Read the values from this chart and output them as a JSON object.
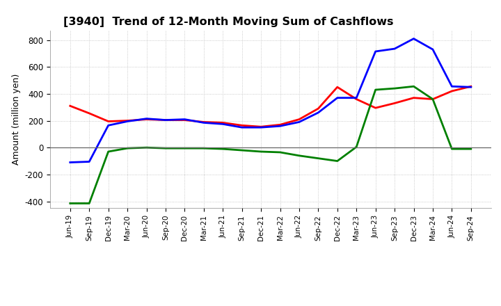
{
  "title": "[3940]  Trend of 12-Month Moving Sum of Cashflows",
  "ylabel": "Amount (million yen)",
  "xlabels": [
    "Jun-19",
    "Sep-19",
    "Dec-19",
    "Mar-20",
    "Jun-20",
    "Sep-20",
    "Dec-20",
    "Mar-21",
    "Jun-21",
    "Sep-21",
    "Dec-21",
    "Mar-22",
    "Jun-22",
    "Sep-22",
    "Dec-22",
    "Mar-23",
    "Jun-23",
    "Sep-23",
    "Dec-23",
    "Mar-24",
    "Jun-24",
    "Sep-24"
  ],
  "operating": [
    310,
    255,
    195,
    200,
    210,
    205,
    205,
    190,
    185,
    165,
    155,
    170,
    210,
    290,
    450,
    360,
    295,
    330,
    370,
    360,
    420,
    455
  ],
  "investing": [
    -415,
    -415,
    -30,
    -5,
    0,
    -5,
    -5,
    -5,
    -10,
    -20,
    -30,
    -35,
    -60,
    -80,
    -100,
    5,
    430,
    440,
    455,
    360,
    -10,
    -10
  ],
  "free": [
    -110,
    -105,
    165,
    195,
    215,
    205,
    210,
    185,
    175,
    150,
    150,
    160,
    190,
    260,
    370,
    370,
    715,
    735,
    810,
    730,
    455,
    450
  ],
  "ylim": [
    -450,
    870
  ],
  "yticks": [
    -400,
    -200,
    0,
    200,
    400,
    600,
    800
  ],
  "colors": {
    "operating": "#ff0000",
    "investing": "#008000",
    "free": "#0000ff"
  },
  "bg_color": "#ffffff",
  "grid_color": "#bbbbbb"
}
